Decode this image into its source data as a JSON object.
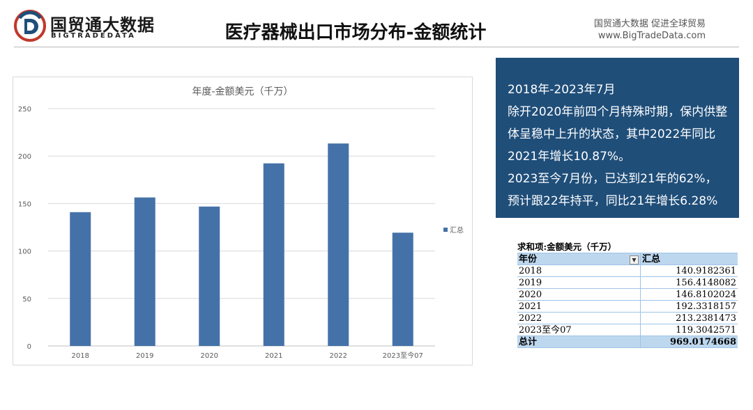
{
  "header": {
    "logo_cn": "国贸通大数据",
    "logo_en": "BIGTRADEDATA",
    "title": "医疗器械出口市场分布-金额统计",
    "tagline": "国贸通大数据  促进全球贸易",
    "website": "www.BigTradeData.com"
  },
  "colors": {
    "bar": "#4472a8",
    "summary_bg": "#1f4e79",
    "pivot_header": "#bdd7ee"
  },
  "summary": {
    "lines": [
      "2018年-2023年7月",
      "除开2020年前四个月特殊时期，保内供整体呈稳中上升的状态，其中2022年同比2021年增长10.87%。",
      "2023至今7月份，已达到21年的62%，预计跟22年持平，同比21年增长6.28%"
    ]
  },
  "chart_data": {
    "type": "bar",
    "title": "年度-金额美元（千万）",
    "categories": [
      "2018",
      "2019",
      "2020",
      "2021",
      "2022",
      "2023至今07"
    ],
    "series": [
      {
        "name": "汇总",
        "values": [
          140.9182361,
          156.4148082,
          146.8102024,
          192.3318157,
          213.2381473,
          119.3042571
        ]
      }
    ],
    "ylim": [
      0,
      250
    ],
    "yticks": [
      0,
      50,
      100,
      150,
      200,
      250
    ],
    "grid": true,
    "legend": "right"
  },
  "pivot": {
    "caption": "求和项:金额美元（千万）",
    "col_header": "年份",
    "val_header": "汇总",
    "filter_icon": "dropdown-arrow-icon",
    "rows": [
      {
        "label": "2018",
        "value": "140.9182361"
      },
      {
        "label": "2019",
        "value": "156.4148082"
      },
      {
        "label": "2020",
        "value": "146.8102024"
      },
      {
        "label": "2021",
        "value": "192.3318157"
      },
      {
        "label": "2022",
        "value": "213.2381473"
      },
      {
        "label": "2023至今07",
        "value": "119.3042571"
      }
    ],
    "total_label": "总计",
    "total_value": "969.0174668"
  }
}
